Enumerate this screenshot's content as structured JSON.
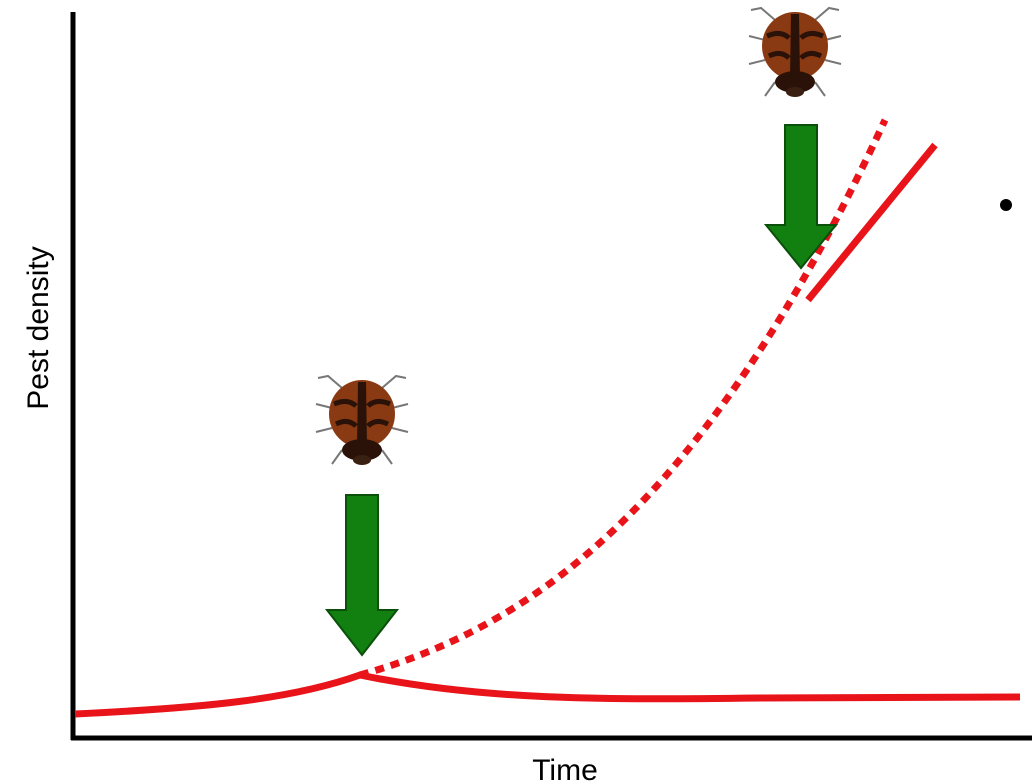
{
  "axes": {
    "y_label": "Pest density",
    "x_label": "Time"
  }
}
